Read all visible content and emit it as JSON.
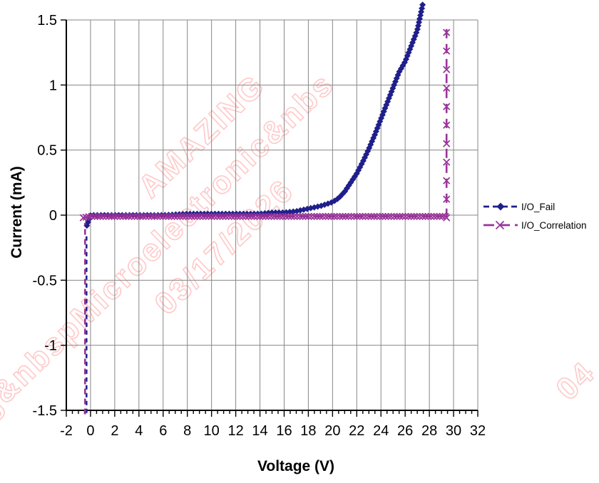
{
  "watermark": {
    "color": "#ffc9c9",
    "lines": [
      "ng&nbspMicroelectronic&nbs",
      "AMAZING",
      "03/17/2026",
      "04"
    ]
  },
  "legend": {
    "position": "right"
  },
  "chart_data": {
    "type": "line",
    "title": "",
    "xlabel": "Voltage (V)",
    "ylabel": "Current (mA)",
    "xlim": [
      -2,
      32
    ],
    "ylim": [
      -1.5,
      1.5
    ],
    "x_tick_step": 2,
    "x_minor_tick_step": 0.5,
    "y_tick_step": 0.5,
    "x_ticks": [
      -2,
      0,
      2,
      4,
      6,
      8,
      10,
      12,
      14,
      16,
      18,
      20,
      22,
      24,
      26,
      28,
      30,
      32
    ],
    "y_tick_labels": [
      "1.5",
      "1",
      "0.5",
      "0",
      "-0.5",
      "-1",
      "-1.5"
    ],
    "grid": true,
    "colors": {
      "grid": "#878787",
      "axis": "#000000",
      "io_fail": "#1f1f8b",
      "io_correlation": "#993399",
      "watermark": "#ffc9c9"
    },
    "series": [
      {
        "name": "I/O_Fail",
        "color": "#1f1f8b",
        "marker": "diamond",
        "line_style": "dashed",
        "dash": "7 5",
        "segments": [
          {
            "points": [
              [
                -0.33,
                -1.52
              ],
              [
                -0.33,
                -0.14
              ]
            ],
            "markers": false,
            "dash": "6 5"
          },
          {
            "points": [
              [
                -0.3,
                -0.08
              ],
              [
                0,
                0.0
              ],
              [
                2,
                0.0
              ],
              [
                4,
                0.0
              ],
              [
                6,
                0.0
              ],
              [
                8,
                0.01
              ],
              [
                10,
                0.01
              ],
              [
                12,
                0.01
              ],
              [
                14,
                0.01
              ],
              [
                15,
                0.02
              ],
              [
                16,
                0.02
              ],
              [
                17,
                0.03
              ],
              [
                18,
                0.05
              ],
              [
                19,
                0.07
              ],
              [
                20,
                0.1
              ],
              [
                20.5,
                0.13
              ],
              [
                21,
                0.18
              ],
              [
                21.5,
                0.25
              ],
              [
                22,
                0.32
              ],
              [
                22.5,
                0.41
              ],
              [
                23,
                0.51
              ],
              [
                23.5,
                0.62
              ],
              [
                24,
                0.74
              ],
              [
                24.5,
                0.86
              ],
              [
                25,
                0.98
              ],
              [
                25.5,
                1.1
              ],
              [
                26,
                1.18
              ],
              [
                26.5,
                1.3
              ],
              [
                27,
                1.42
              ],
              [
                27.45,
                1.62
              ]
            ],
            "markers": true,
            "marker_every_px": 5
          }
        ]
      },
      {
        "name": "I/O_Correlation",
        "color": "#993399",
        "marker": "x",
        "line_style": "dashed",
        "dash": "12 7",
        "segments": [
          {
            "points": [
              [
                -0.45,
                -1.53
              ],
              [
                -0.45,
                -0.06
              ]
            ],
            "markers": false,
            "dash": "8 6"
          },
          {
            "points": [
              [
                -0.6,
                -0.02
              ],
              [
                0,
                -0.01
              ],
              [
                5,
                -0.01
              ],
              [
                10,
                -0.01
              ],
              [
                15,
                -0.01
              ],
              [
                20,
                -0.01
              ],
              [
                25,
                -0.01
              ],
              [
                29.35,
                -0.01
              ]
            ],
            "markers": true,
            "marker_every_px": 4
          },
          {
            "points": [
              [
                29.42,
                -0.02
              ],
              [
                29.42,
                1.45
              ]
            ],
            "markers": true,
            "marker_every_px": 26,
            "dash": "13 8"
          }
        ]
      }
    ]
  }
}
